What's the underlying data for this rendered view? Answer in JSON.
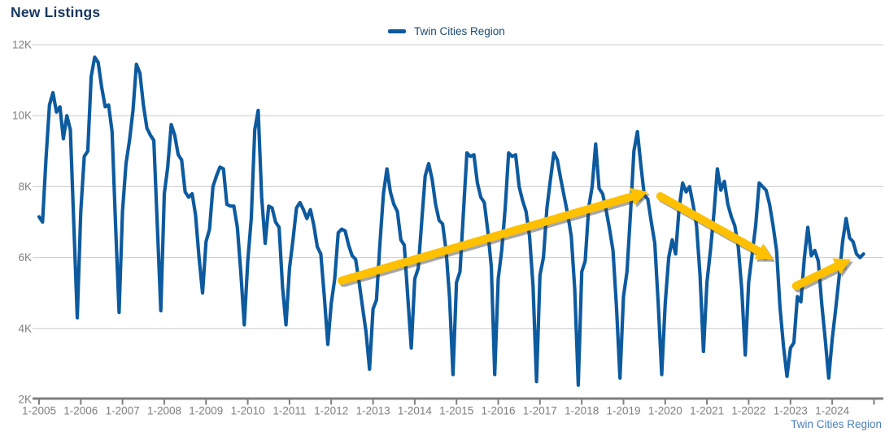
{
  "header": {
    "title": "New Listings"
  },
  "legend": {
    "label": "Twin Cities Region"
  },
  "footer": {
    "label": "Twin Cities Region"
  },
  "colors": {
    "background": "#FFFFFF",
    "line": "#0D5A9F",
    "arrow": "#FFC000",
    "arrow_shadow": "rgba(60,60,60,0.45)",
    "grid": "#CCCCCC",
    "axis": "#808080",
    "axis_text": "#7F7F7F",
    "title_text": "#17375E",
    "legend_text": "#1A4971",
    "footer_text": "#4A7EBB"
  },
  "chart_data": {
    "type": "line",
    "title": "New Listings",
    "series_name": "Twin Cities Region",
    "frequency": "monthly",
    "first_month": "1-2005",
    "last_month": "10-2024",
    "ylim": [
      2000,
      12000
    ],
    "y_tick_step": 2000,
    "y_tick_labels": [
      "2K",
      "4K",
      "6K",
      "8K",
      "10K",
      "12K"
    ],
    "x_tick_labels": [
      "1-2005",
      "1-2006",
      "1-2007",
      "1-2008",
      "1-2009",
      "1-2010",
      "1-2011",
      "1-2012",
      "1-2013",
      "1-2014",
      "1-2015",
      "1-2016",
      "1-2017",
      "1-2018",
      "1-2019",
      "1-2020",
      "1-2021",
      "1-2022",
      "1-2023",
      "1-2024"
    ],
    "grid": "horizontal",
    "legend_position": "top-center",
    "values_by_year": {
      "2005": [
        7150,
        7000,
        8800,
        10300,
        10650,
        10100,
        10250,
        9350,
        10000,
        9600,
        6900,
        4300
      ],
      "2006": [
        7300,
        8850,
        9000,
        11100,
        11650,
        11500,
        10800,
        10250,
        10300,
        9550,
        6900,
        4450
      ],
      "2007": [
        7300,
        8650,
        9300,
        10150,
        11450,
        11200,
        10300,
        9650,
        9450,
        9300,
        6900,
        4500
      ],
      "2008": [
        7800,
        8550,
        9750,
        9450,
        8900,
        8750,
        7850,
        7700,
        7800,
        7200,
        6000,
        5000
      ],
      "2009": [
        6450,
        6800,
        8000,
        8300,
        8550,
        8500,
        7500,
        7450,
        7450,
        6850,
        5600,
        4100
      ],
      "2010": [
        5900,
        7100,
        9600,
        10150,
        7700,
        6400,
        7450,
        7400,
        7000,
        6850,
        5150,
        4100
      ],
      "2011": [
        5700,
        6500,
        7400,
        7550,
        7350,
        7100,
        7350,
        6900,
        6300,
        6100,
        4900,
        3550
      ],
      "2012": [
        4700,
        5400,
        6700,
        6800,
        6750,
        6350,
        6050,
        5950,
        5300,
        4600,
        3900,
        2850
      ],
      "2013": [
        4550,
        4800,
        6400,
        7800,
        8500,
        7850,
        7500,
        7300,
        6500,
        6350,
        4900,
        3450
      ],
      "2014": [
        5400,
        5700,
        7000,
        8300,
        8650,
        8200,
        7500,
        7050,
        6950,
        6200,
        4900,
        2700
      ],
      "2015": [
        5300,
        5600,
        7300,
        8950,
        8850,
        8900,
        8100,
        7700,
        7550,
        6750,
        5750,
        2700
      ],
      "2016": [
        5400,
        6200,
        7400,
        8950,
        8850,
        8900,
        8000,
        7600,
        7300,
        6600,
        5200,
        2500
      ],
      "2017": [
        5500,
        6000,
        7400,
        8200,
        8950,
        8750,
        8200,
        7700,
        7200,
        6600,
        5100,
        2400
      ],
      "2018": [
        5600,
        5900,
        7400,
        8000,
        9200,
        7950,
        7800,
        7350,
        6800,
        6200,
        4600,
        2600
      ],
      "2019": [
        4900,
        5600,
        7200,
        9000,
        9550,
        8600,
        7750,
        7650,
        7000,
        6400,
        4700,
        2700
      ],
      "2020": [
        4700,
        6000,
        6500,
        6100,
        7400,
        8100,
        7850,
        8000,
        7500,
        6900,
        5500,
        3350
      ],
      "2021": [
        5300,
        6200,
        7250,
        8500,
        7900,
        8150,
        7500,
        7150,
        6900,
        6300,
        5100,
        3250
      ],
      "2022": [
        5300,
        6100,
        6900,
        8100,
        8000,
        7900,
        7500,
        6900,
        6200,
        4600,
        3500,
        2650
      ],
      "2023": [
        3450,
        3600,
        4900,
        4750,
        6000,
        6850,
        6050,
        6200,
        5900,
        4700,
        3700,
        2600
      ],
      "2024": [
        3700,
        4550,
        5450,
        6450,
        7100,
        6550,
        6450,
        6100,
        6000,
        6100
      ]
    },
    "annotations": {
      "arrows": [
        {
          "name": "uptrend-2012-2019",
          "from_month_index": 87,
          "from_value": 5350,
          "to_month_index": 175,
          "to_value": 7850
        },
        {
          "name": "downtrend-2020-2022",
          "from_month_index": 178.6,
          "from_value": 7730,
          "to_month_index": 211,
          "to_value": 5950
        },
        {
          "name": "uptrend-2023-2024",
          "from_month_index": 217.6,
          "from_value": 5200,
          "to_month_index": 233.4,
          "to_value": 5950
        }
      ]
    }
  }
}
